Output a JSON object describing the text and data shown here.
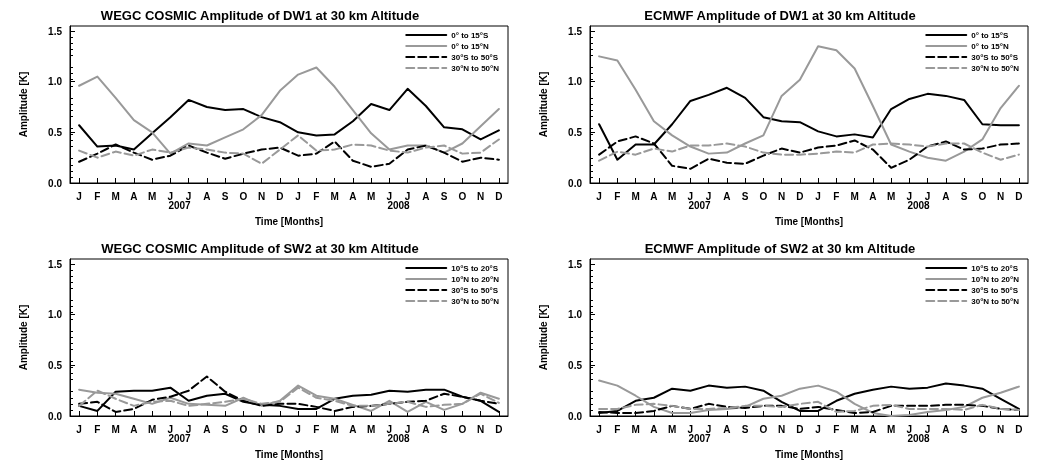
{
  "chart_data": [
    {
      "type": "line",
      "title": "WEGC COSMIC Amplitude of DW1 at 30 km Altitude",
      "xlabel": "Time [Months]",
      "ylabel": "Amplitude [K]",
      "categories": [
        "J",
        "F",
        "M",
        "A",
        "M",
        "J",
        "J",
        "A",
        "S",
        "O",
        "N",
        "D",
        "J",
        "F",
        "M",
        "A",
        "M",
        "J",
        "J",
        "A",
        "S",
        "O",
        "N",
        "D"
      ],
      "annotations": [
        "2007",
        "2008"
      ],
      "ylim": [
        0,
        1.55
      ],
      "yticks": [
        {
          "value": 0,
          "label": "0.0"
        },
        {
          "value": 0.5,
          "label": "0.5"
        },
        {
          "value": 1,
          "label": "1.0"
        },
        {
          "value": 1.5,
          "label": "1.5"
        }
      ],
      "legend": "top right",
      "marker": "none",
      "series": [
        {
          "name": "0° to 15°S",
          "color": "#000000",
          "line_style": "solid",
          "values": [
            0.57,
            0.36,
            0.37,
            0.33,
            0.49,
            0.65,
            0.82,
            0.75,
            0.72,
            0.73,
            0.65,
            0.6,
            0.5,
            0.47,
            0.48,
            0.61,
            0.78,
            0.72,
            0.93,
            0.76,
            0.55,
            0.53,
            0.43,
            0.52
          ]
        },
        {
          "name": "0° to 15°N",
          "color": "#999999",
          "line_style": "solid",
          "values": [
            0.96,
            1.05,
            0.84,
            0.62,
            0.5,
            0.29,
            0.39,
            0.37,
            0.45,
            0.53,
            0.67,
            0.91,
            1.07,
            1.14,
            0.95,
            0.72,
            0.49,
            0.33,
            0.37,
            0.37,
            0.3,
            0.39,
            0.56,
            0.73
          ]
        },
        {
          "name": "30°S to 50°S",
          "color": "#000000",
          "line_style": "dashed",
          "values": [
            0.21,
            0.29,
            0.38,
            0.3,
            0.23,
            0.27,
            0.37,
            0.3,
            0.24,
            0.29,
            0.33,
            0.35,
            0.27,
            0.29,
            0.41,
            0.22,
            0.16,
            0.19,
            0.33,
            0.37,
            0.3,
            0.21,
            0.25,
            0.23
          ]
        },
        {
          "name": "30°N to 50°N",
          "color": "#999999",
          "line_style": "dashed",
          "values": [
            0.32,
            0.25,
            0.31,
            0.27,
            0.33,
            0.3,
            0.35,
            0.33,
            0.3,
            0.29,
            0.19,
            0.33,
            0.47,
            0.32,
            0.33,
            0.38,
            0.37,
            0.32,
            0.3,
            0.35,
            0.37,
            0.29,
            0.3,
            0.43
          ]
        }
      ]
    },
    {
      "type": "line",
      "title": "ECMWF Amplitude of DW1 at 30 km Altitude",
      "xlabel": "Time [Months]",
      "ylabel": "Amplitude [K]",
      "categories": [
        "J",
        "F",
        "M",
        "A",
        "M",
        "J",
        "J",
        "A",
        "S",
        "O",
        "N",
        "D",
        "J",
        "F",
        "M",
        "A",
        "M",
        "J",
        "J",
        "A",
        "S",
        "O",
        "N",
        "D"
      ],
      "annotations": [
        "2007",
        "2008"
      ],
      "ylim": [
        0,
        1.55
      ],
      "yticks": [
        {
          "value": 0,
          "label": "0.0"
        },
        {
          "value": 0.5,
          "label": "0.5"
        },
        {
          "value": 1,
          "label": "1.0"
        },
        {
          "value": 1.5,
          "label": "1.5"
        }
      ],
      "legend": "top right",
      "marker": "none",
      "series": [
        {
          "name": "0° to 15°S",
          "color": "#000000",
          "line_style": "solid",
          "values": [
            0.58,
            0.23,
            0.38,
            0.38,
            0.58,
            0.81,
            0.87,
            0.94,
            0.84,
            0.65,
            0.61,
            0.6,
            0.51,
            0.46,
            0.48,
            0.45,
            0.73,
            0.83,
            0.88,
            0.86,
            0.82,
            0.58,
            0.57,
            0.57
          ]
        },
        {
          "name": "0° to 15°N",
          "color": "#999999",
          "line_style": "solid",
          "values": [
            1.25,
            1.21,
            0.92,
            0.61,
            0.47,
            0.36,
            0.29,
            0.3,
            0.39,
            0.47,
            0.86,
            1.02,
            1.35,
            1.31,
            1.13,
            0.76,
            0.38,
            0.31,
            0.25,
            0.22,
            0.31,
            0.43,
            0.74,
            0.96
          ]
        },
        {
          "name": "30°S to 50°S",
          "color": "#000000",
          "line_style": "dashed",
          "values": [
            0.28,
            0.41,
            0.46,
            0.39,
            0.17,
            0.14,
            0.24,
            0.2,
            0.19,
            0.27,
            0.34,
            0.3,
            0.35,
            0.37,
            0.42,
            0.33,
            0.15,
            0.23,
            0.36,
            0.41,
            0.33,
            0.34,
            0.38,
            0.39
          ]
        },
        {
          "name": "30°N to 50°N",
          "color": "#999999",
          "line_style": "dashed",
          "values": [
            0.22,
            0.31,
            0.28,
            0.34,
            0.31,
            0.37,
            0.37,
            0.39,
            0.36,
            0.3,
            0.28,
            0.28,
            0.29,
            0.31,
            0.3,
            0.38,
            0.39,
            0.38,
            0.36,
            0.39,
            0.39,
            0.3,
            0.23,
            0.28
          ]
        }
      ]
    },
    {
      "type": "line",
      "title": "WEGC COSMIC Amplitude of SW2 at 30 km Altitude",
      "xlabel": "Time [Months]",
      "ylabel": "Amplitude [K]",
      "categories": [
        "J",
        "F",
        "M",
        "A",
        "M",
        "J",
        "J",
        "A",
        "S",
        "O",
        "N",
        "D",
        "J",
        "F",
        "M",
        "A",
        "M",
        "J",
        "J",
        "A",
        "S",
        "O",
        "N",
        "D"
      ],
      "annotations": [
        "2007",
        "2008"
      ],
      "ylim": [
        0,
        1.55
      ],
      "yticks": [
        {
          "value": 0,
          "label": "0.0"
        },
        {
          "value": 0.5,
          "label": "0.5"
        },
        {
          "value": 1,
          "label": "1.0"
        },
        {
          "value": 1.5,
          "label": "1.5"
        }
      ],
      "legend": "top right",
      "marker": "none",
      "series": [
        {
          "name": "10°S to 20°S",
          "color": "#000000",
          "line_style": "solid",
          "values": [
            0.1,
            0.05,
            0.24,
            0.25,
            0.25,
            0.28,
            0.15,
            0.2,
            0.22,
            0.14,
            0.11,
            0.1,
            0.07,
            0.07,
            0.17,
            0.2,
            0.21,
            0.25,
            0.24,
            0.26,
            0.26,
            0.19,
            0.15,
            0.04
          ]
        },
        {
          "name": "10°N to 20°N",
          "color": "#999999",
          "line_style": "solid",
          "values": [
            0.26,
            0.23,
            0.22,
            0.17,
            0.12,
            0.18,
            0.12,
            0.11,
            0.1,
            0.18,
            0.1,
            0.15,
            0.3,
            0.2,
            0.17,
            0.11,
            0.05,
            0.15,
            0.04,
            0.14,
            0.06,
            0.12,
            0.23,
            0.17
          ]
        },
        {
          "name": "30°S to 50°S",
          "color": "#000000",
          "line_style": "dashed",
          "values": [
            0.12,
            0.14,
            0.04,
            0.07,
            0.16,
            0.19,
            0.25,
            0.39,
            0.24,
            0.15,
            0.1,
            0.12,
            0.12,
            0.09,
            0.05,
            0.09,
            0.1,
            0.12,
            0.14,
            0.15,
            0.22,
            0.19,
            0.15,
            0.12
          ]
        },
        {
          "name": "30°N to 50°N",
          "color": "#999999",
          "line_style": "dashed",
          "values": [
            0.1,
            0.25,
            0.17,
            0.1,
            0.14,
            0.15,
            0.1,
            0.12,
            0.14,
            0.17,
            0.12,
            0.14,
            0.28,
            0.18,
            0.15,
            0.1,
            0.1,
            0.12,
            0.14,
            0.09,
            0.11,
            0.12,
            0.22,
            0.13
          ]
        }
      ]
    },
    {
      "type": "line",
      "title": "ECMWF Amplitude of SW2 at 30 km Altitude",
      "xlabel": "Time [Months]",
      "ylabel": "Amplitude [K]",
      "categories": [
        "J",
        "F",
        "M",
        "A",
        "M",
        "J",
        "J",
        "A",
        "S",
        "O",
        "N",
        "D",
        "J",
        "F",
        "M",
        "A",
        "M",
        "J",
        "J",
        "A",
        "S",
        "O",
        "N",
        "D"
      ],
      "annotations": [
        "2007",
        "2008"
      ],
      "ylim": [
        0,
        1.55
      ],
      "yticks": [
        {
          "value": 0,
          "label": "0.0"
        },
        {
          "value": 0.5,
          "label": "0.5"
        },
        {
          "value": 1,
          "label": "1.0"
        },
        {
          "value": 1.5,
          "label": "1.5"
        }
      ],
      "legend": "top right",
      "marker": "none",
      "series": [
        {
          "name": "10°S to 20°S",
          "color": "#000000",
          "line_style": "solid",
          "values": [
            0.03,
            0.05,
            0.15,
            0.18,
            0.27,
            0.25,
            0.3,
            0.28,
            0.29,
            0.25,
            0.14,
            0.05,
            0.05,
            0.15,
            0.22,
            0.26,
            0.29,
            0.27,
            0.28,
            0.32,
            0.3,
            0.27,
            0.17,
            0.07
          ]
        },
        {
          "name": "10°N to 20°N",
          "color": "#999999",
          "line_style": "solid",
          "values": [
            0.35,
            0.3,
            0.2,
            0.09,
            0.03,
            0.03,
            0.06,
            0.07,
            0.09,
            0.17,
            0.2,
            0.27,
            0.3,
            0.24,
            0.12,
            0.03,
            0,
            0.01,
            0.04,
            0.06,
            0.09,
            0.18,
            0.23,
            0.29
          ]
        },
        {
          "name": "30°S to 50°S",
          "color": "#000000",
          "line_style": "dashed",
          "values": [
            0.04,
            0.03,
            0.03,
            0.05,
            0.1,
            0.07,
            0.12,
            0.09,
            0.08,
            0.1,
            0.1,
            0.07,
            0.09,
            0.06,
            0.03,
            0.04,
            0.1,
            0.1,
            0.1,
            0.11,
            0.11,
            0.1,
            0.07,
            0.06
          ]
        },
        {
          "name": "30°N to 50°N",
          "color": "#999999",
          "line_style": "dashed",
          "values": [
            0.07,
            0.07,
            0.11,
            0.12,
            0.1,
            0.07,
            0.07,
            0.08,
            0.1,
            0.1,
            0.09,
            0.12,
            0.14,
            0.04,
            0.05,
            0.1,
            0.11,
            0.07,
            0.07,
            0.07,
            0.06,
            0.11,
            0.07,
            0.06
          ]
        }
      ]
    }
  ]
}
